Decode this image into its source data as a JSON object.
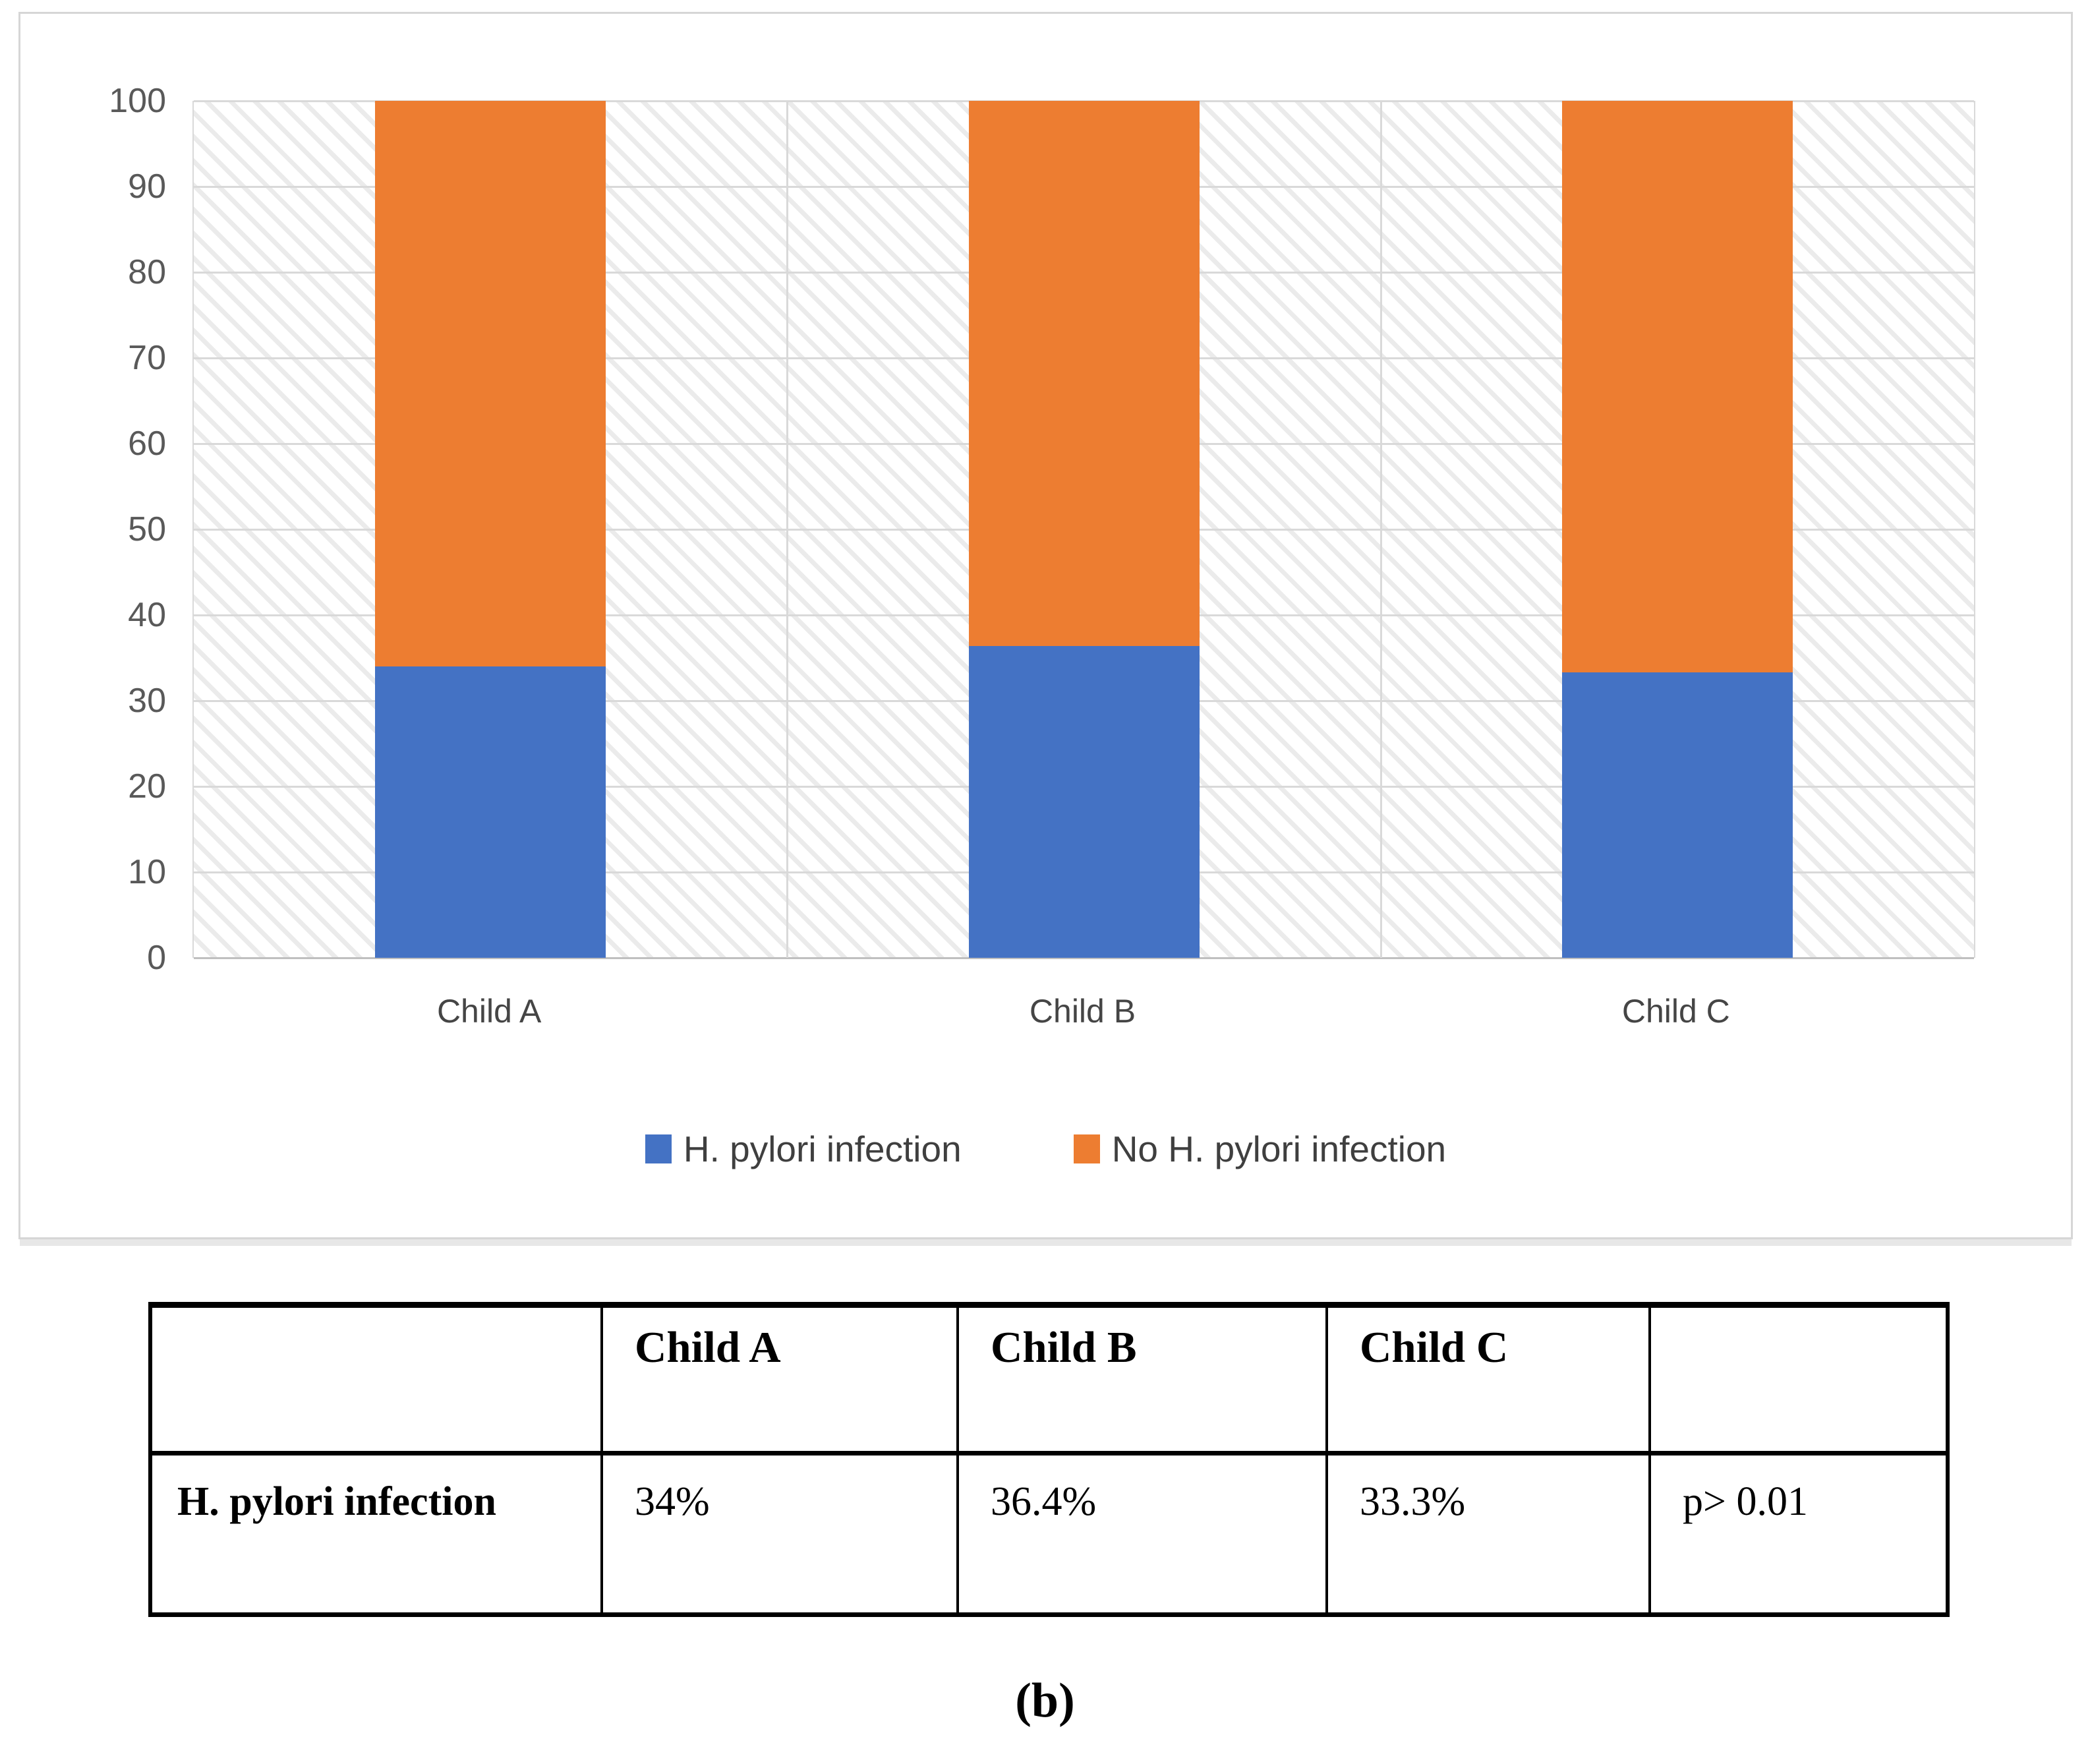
{
  "chart_data": {
    "type": "bar",
    "stacked": true,
    "title": "",
    "xlabel": "",
    "ylabel": "",
    "categories": [
      "Child A",
      "Child B",
      "Child C"
    ],
    "series": [
      {
        "name": "H. pylori infection",
        "color": "#4472C4",
        "values": [
          34,
          36.4,
          33.3
        ]
      },
      {
        "name": "No H. pylori infection",
        "color": "#ED7D31",
        "values": [
          66,
          63.6,
          66.7
        ]
      }
    ],
    "ylim": [
      0,
      100
    ],
    "yticks": [
      0,
      10,
      20,
      30,
      40,
      50,
      60,
      70,
      80,
      90,
      100
    ],
    "grid": "horizontal major gridlines plus category separator verticals",
    "plot_background": "light diagonal hatch",
    "legend_position": "bottom"
  },
  "colors": {
    "series_blue": "#4472C4",
    "series_orange": "#ED7D31",
    "gridline": "#D9D9D9",
    "axis_text": "#595959",
    "panel_border": "#D6D6D6"
  },
  "table": {
    "columns": [
      "",
      "Child A",
      "Child B",
      "Child C",
      ""
    ],
    "rows": [
      {
        "label": "H. pylori infection",
        "values": [
          "34%",
          "36.4%",
          "33.3%",
          "p> 0.01"
        ]
      }
    ]
  },
  "caption": "(b)"
}
